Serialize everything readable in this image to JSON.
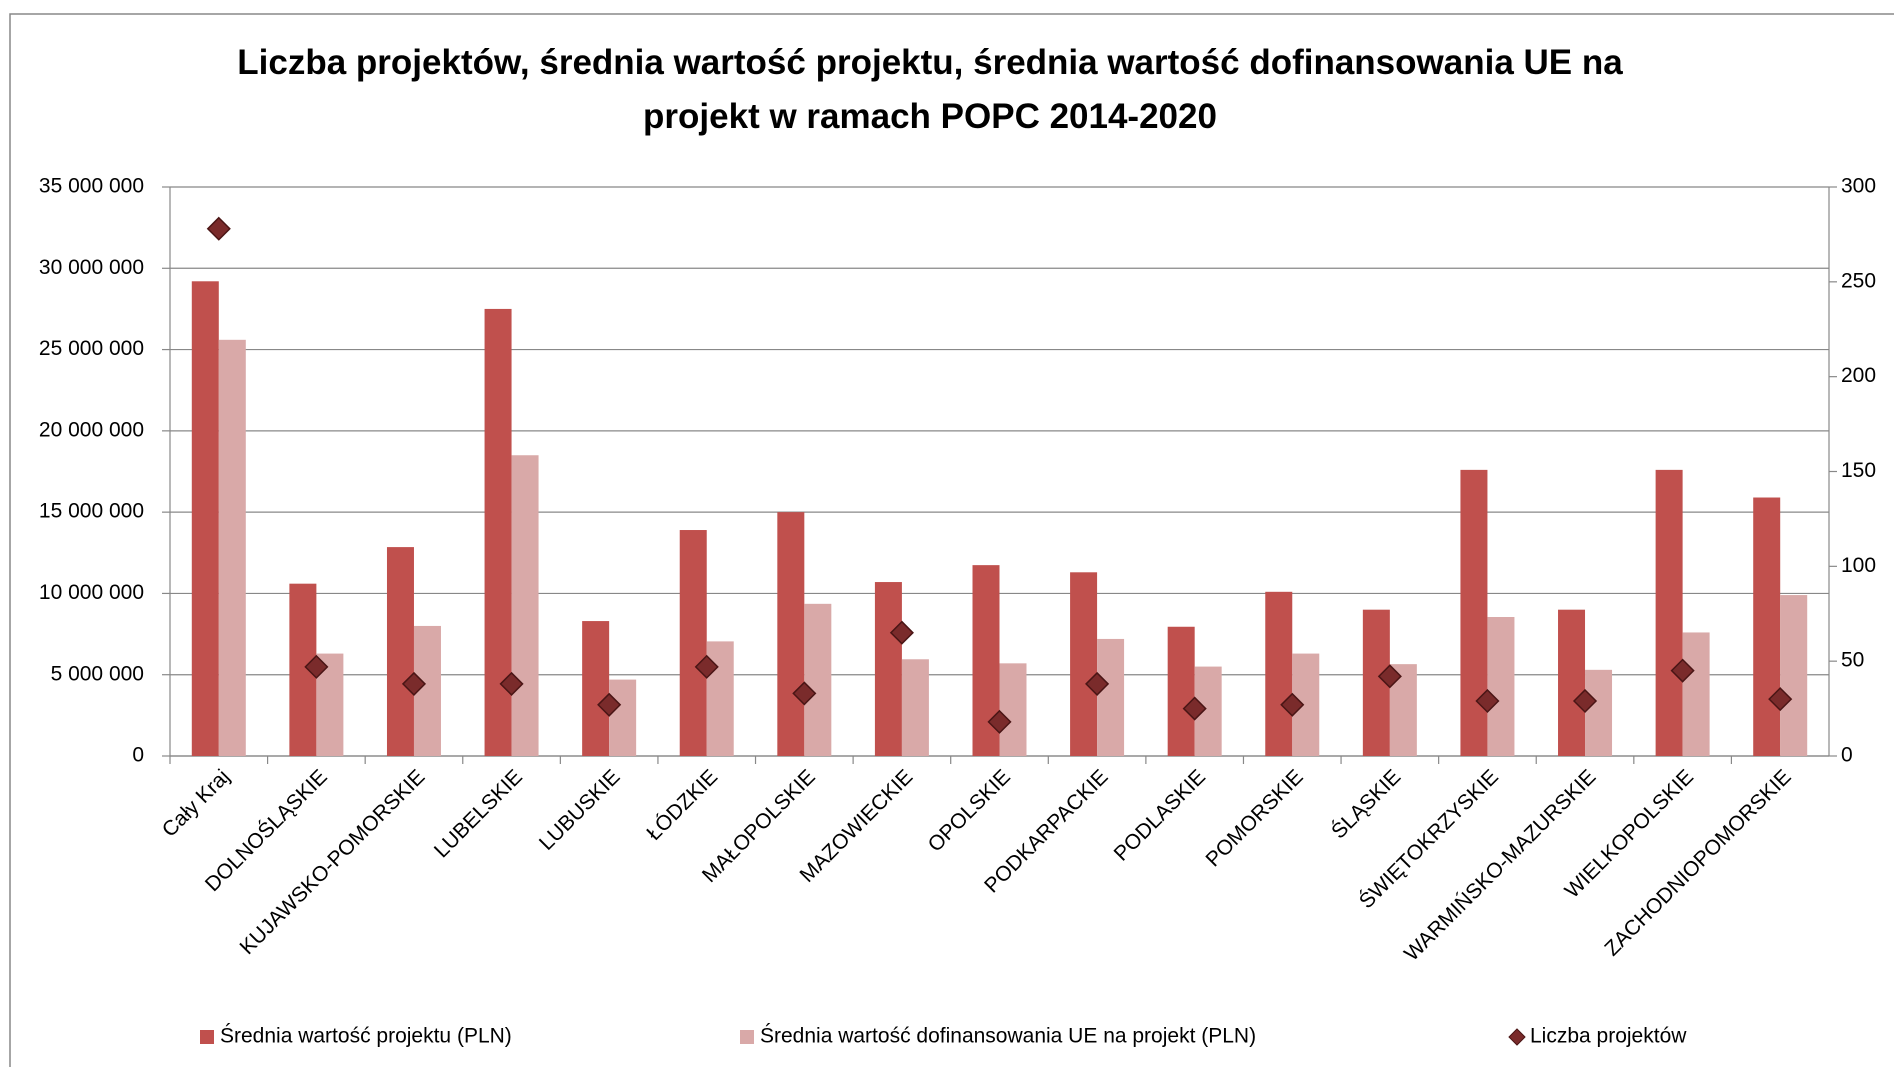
{
  "chart_data": {
    "type": "bar",
    "title": "Liczba projektów, średnia wartość projektu, średnia wartość dofinansowania UE na projekt w ramach POPC 2014-2020",
    "categories": [
      "Cały Kraj",
      "DOLNOŚLĄSKIE",
      "KUJAWSKO-POMORSKIE",
      "LUBELSKIE",
      "LUBUSKIE",
      "ŁÓDZKIE",
      "MAŁOPOLSKIE",
      "MAZOWIECKIE",
      "OPOLSKIE",
      "PODKARPACKIE",
      "PODLASKIE",
      "POMORSKIE",
      "ŚLĄSKIE",
      "ŚWIĘTOKRZYSKIE",
      "WARMIŃSKO-MAZURSKIE",
      "WIELKOPOLSKIE",
      "ZACHODNIOPOMORSKIE"
    ],
    "series": [
      {
        "name": "Średnia wartość projektu (PLN)",
        "type": "bar",
        "color": "#c0504d",
        "values": [
          29200000,
          10600000,
          12850000,
          27500000,
          8300000,
          13900000,
          15000000,
          10700000,
          11740000,
          11300000,
          7950000,
          10100000,
          9000000,
          17600000,
          9000000,
          17600000,
          15900000
        ]
      },
      {
        "name": "Średnia wartość dofinansowania UE na projekt (PLN)",
        "type": "bar",
        "color": "#d9a9a8",
        "values": [
          25600000,
          6300000,
          8000000,
          18500000,
          4700000,
          7050000,
          9360000,
          5950000,
          5700000,
          7200000,
          5500000,
          6300000,
          5650000,
          8550000,
          5300000,
          7600000,
          9900000
        ]
      },
      {
        "name": "Liczba projektów",
        "type": "scatter",
        "axis": "y2",
        "color": "#7a2b2b",
        "values": [
          278,
          47,
          38,
          38,
          27,
          47,
          33,
          65,
          18,
          38,
          25,
          27,
          42,
          29,
          29,
          45,
          30
        ]
      }
    ],
    "ylim": [
      0,
      35000000
    ],
    "yticks": [
      {
        "value": 0,
        "label": "0"
      },
      {
        "value": 5000000,
        "label": "5 000 000"
      },
      {
        "value": 10000000,
        "label": "10 000 000"
      },
      {
        "value": 15000000,
        "label": "15 000 000"
      },
      {
        "value": 20000000,
        "label": "20 000 000"
      },
      {
        "value": 25000000,
        "label": "25 000 000"
      },
      {
        "value": 30000000,
        "label": "30 000 000"
      },
      {
        "value": 35000000,
        "label": "35 000 000"
      }
    ],
    "y2lim": [
      0,
      300
    ],
    "y2ticks": [
      0,
      50,
      100,
      150,
      200,
      250,
      300
    ],
    "grid": true,
    "legend": "bottom"
  }
}
